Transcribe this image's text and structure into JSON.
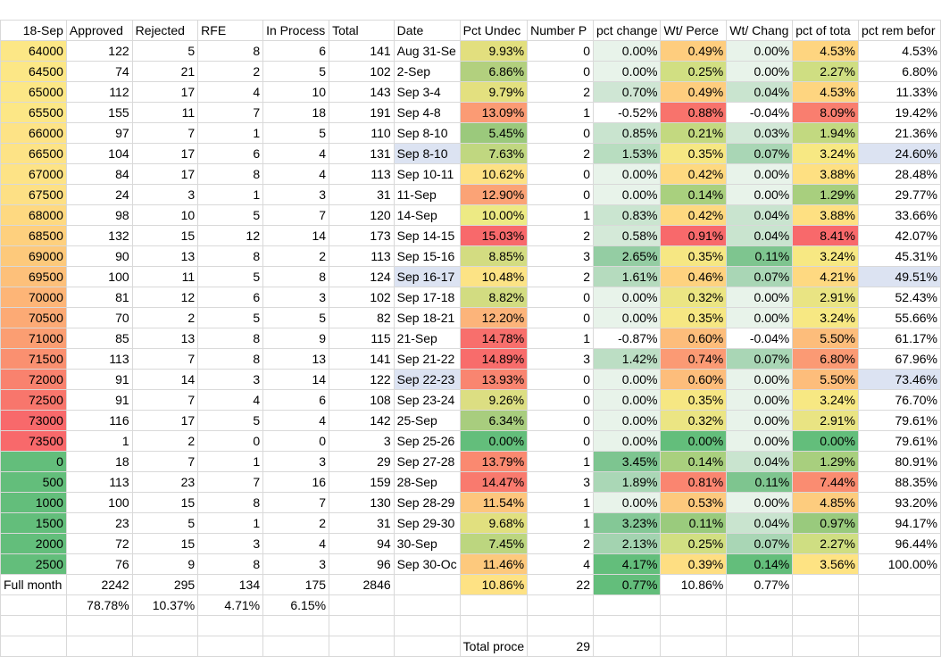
{
  "headers": [
    "18-Sep",
    "Approved",
    "Rejected",
    "RFE",
    "In Process",
    "Total",
    "Date",
    "Pct Undec",
    "Number P",
    "pct change",
    "Wt/ Perce",
    "Wt/ Chang",
    "pct of tota",
    "pct rem befor"
  ],
  "rows": [
    {
      "band": "64000",
      "approved": "122",
      "rejected": "5",
      "rfe": "8",
      "inproc": "6",
      "total": "141",
      "date": "Aug 31-Se",
      "pct": "9.93%",
      "num": "0",
      "chg": "0.00%",
      "wtp": "0.49%",
      "wtc": "0.00%",
      "tot": "4.53%",
      "rem": "4.53%",
      "c_band": "#fce786",
      "c_pct": "#e2df7e",
      "c_chg": "#e8f3ea",
      "c_wtp": "#fecd7e",
      "c_wtc": "#e8f3ea",
      "c_tot": "#fed580",
      "c_rem": "#ffffff"
    },
    {
      "band": "64500",
      "approved": "74",
      "rejected": "21",
      "rfe": "2",
      "inproc": "5",
      "total": "102",
      "date": "2-Sep",
      "pct": "6.86%",
      "num": "0",
      "chg": "0.00%",
      "wtp": "0.25%",
      "wtc": "0.00%",
      "tot": "2.27%",
      "rem": "6.80%",
      "c_band": "#fce786",
      "c_pct": "#b2d07e",
      "c_chg": "#e8f3ea",
      "c_wtp": "#d1df82",
      "c_wtc": "#e8f3ea",
      "c_tot": "#cfde82",
      "c_rem": "#ffffff"
    },
    {
      "band": "65000",
      "approved": "112",
      "rejected": "17",
      "rfe": "4",
      "inproc": "10",
      "total": "143",
      "date": "Sep 3-4",
      "pct": "9.79%",
      "num": "2",
      "chg": "0.70%",
      "wtp": "0.49%",
      "wtc": "0.04%",
      "tot": "4.53%",
      "rem": "11.33%",
      "c_band": "#fce786",
      "c_pct": "#e3e07f",
      "c_chg": "#cfe6d4",
      "c_wtp": "#fecd7e",
      "c_wtc": "#c9e4cf",
      "c_tot": "#fed580",
      "c_rem": "#ffffff"
    },
    {
      "band": "65500",
      "approved": "155",
      "rejected": "11",
      "rfe": "7",
      "inproc": "18",
      "total": "191",
      "date": "Sep 4-8",
      "pct": "13.09%",
      "num": "1",
      "chg": "-0.52%",
      "wtp": "0.88%",
      "wtc": "-0.04%",
      "tot": "8.09%",
      "rem": "19.42%",
      "c_band": "#fce786",
      "c_pct": "#fb9b74",
      "c_chg": "#ffffff",
      "c_wtp": "#f8736c",
      "c_wtc": "#ffffff",
      "c_tot": "#f97e6f",
      "c_rem": "#ffffff"
    },
    {
      "band": "66000",
      "approved": "97",
      "rejected": "7",
      "rfe": "1",
      "inproc": "5",
      "total": "110",
      "date": "Sep 8-10",
      "pct": "5.45%",
      "num": "0",
      "chg": "0.85%",
      "wtp": "0.21%",
      "wtc": "0.03%",
      "tot": "1.94%",
      "rem": "21.36%",
      "c_band": "#fde386",
      "c_pct": "#9bc97c",
      "c_chg": "#c9e4cf",
      "c_wtp": "#c3d980",
      "c_wtc": "#d2e8d7",
      "c_tot": "#c2d980",
      "c_rem": "#ffffff"
    },
    {
      "band": "66500",
      "approved": "104",
      "rejected": "17",
      "rfe": "6",
      "inproc": "4",
      "total": "131",
      "date": "Sep 8-10",
      "pct": "7.63%",
      "num": "2",
      "chg": "1.53%",
      "wtp": "0.35%",
      "wtc": "0.07%",
      "tot": "3.24%",
      "rem": "24.60%",
      "c_band": "#fde386",
      "c_pct": "#c0d780",
      "c_chg": "#b8ddc0",
      "c_wtp": "#f6e783",
      "c_wtc": "#a9d6b5",
      "c_tot": "#f7e883",
      "c_rem": "#dce3f2",
      "c_date": "#dce3f2"
    },
    {
      "band": "67000",
      "approved": "84",
      "rejected": "17",
      "rfe": "8",
      "inproc": "4",
      "total": "113",
      "date": "Sep 10-11",
      "pct": "10.62%",
      "num": "0",
      "chg": "0.00%",
      "wtp": "0.42%",
      "wtc": "0.00%",
      "tot": "3.88%",
      "rem": "28.48%",
      "c_band": "#fde386",
      "c_pct": "#fde184",
      "c_chg": "#e8f3ea",
      "c_wtp": "#fed980",
      "c_wtc": "#e8f3ea",
      "c_tot": "#fee082",
      "c_rem": "#ffffff"
    },
    {
      "band": "67500",
      "approved": "24",
      "rejected": "3",
      "rfe": "1",
      "inproc": "3",
      "total": "31",
      "date": "11-Sep",
      "pct": "12.90%",
      "num": "0",
      "chg": "0.00%",
      "wtp": "0.14%",
      "wtc": "0.00%",
      "tot": "1.29%",
      "rem": "29.77%",
      "c_band": "#fde085",
      "c_pct": "#fba376",
      "c_chg": "#e8f3ea",
      "c_wtp": "#a9d07e",
      "c_wtc": "#e8f3ea",
      "c_tot": "#a8cf7e",
      "c_rem": "#ffffff"
    },
    {
      "band": "68000",
      "approved": "98",
      "rejected": "10",
      "rfe": "5",
      "inproc": "7",
      "total": "120",
      "date": "14-Sep",
      "pct": "10.00%",
      "num": "1",
      "chg": "0.83%",
      "wtp": "0.42%",
      "wtc": "0.04%",
      "tot": "3.88%",
      "rem": "33.66%",
      "c_band": "#fed981",
      "c_pct": "#edea84",
      "c_chg": "#cae5d0",
      "c_wtp": "#fed980",
      "c_wtc": "#c9e4cf",
      "c_tot": "#fee082",
      "c_rem": "#ffffff"
    },
    {
      "band": "68500",
      "approved": "132",
      "rejected": "15",
      "rfe": "12",
      "inproc": "14",
      "total": "173",
      "date": "Sep 14-15",
      "pct": "15.03%",
      "num": "2",
      "chg": "0.58%",
      "wtp": "0.91%",
      "wtc": "0.04%",
      "tot": "8.41%",
      "rem": "42.07%",
      "c_band": "#fed07e",
      "c_pct": "#f8696b",
      "c_chg": "#d4e9d8",
      "c_wtp": "#f8696b",
      "c_wtc": "#c9e4cf",
      "c_tot": "#f8696b",
      "c_rem": "#ffffff"
    },
    {
      "band": "69000",
      "approved": "90",
      "rejected": "13",
      "rfe": "8",
      "inproc": "2",
      "total": "113",
      "date": "Sep 15-16",
      "pct": "8.85%",
      "num": "3",
      "chg": "2.65%",
      "wtp": "0.35%",
      "wtc": "0.11%",
      "tot": "3.24%",
      "rem": "45.31%",
      "c_band": "#fdc97b",
      "c_pct": "#d3dc81",
      "c_chg": "#94cda3",
      "c_wtp": "#f6e783",
      "c_wtc": "#7ec58f",
      "c_tot": "#f7e883",
      "c_rem": "#ffffff"
    },
    {
      "band": "69500",
      "approved": "100",
      "rejected": "11",
      "rfe": "5",
      "inproc": "8",
      "total": "124",
      "date": "Sep 16-17",
      "pct": "10.48%",
      "num": "2",
      "chg": "1.61%",
      "wtp": "0.46%",
      "wtc": "0.07%",
      "tot": "4.21%",
      "rem": "49.51%",
      "c_band": "#fdc07a",
      "c_pct": "#fce385",
      "c_chg": "#b5dbbe",
      "c_wtp": "#fed27f",
      "c_wtc": "#a9d6b5",
      "c_tot": "#fed981",
      "c_rem": "#dce3f2",
      "c_date": "#dce3f2"
    },
    {
      "band": "70000",
      "approved": "81",
      "rejected": "12",
      "rfe": "6",
      "inproc": "3",
      "total": "102",
      "date": "Sep 17-18",
      "pct": "8.82%",
      "num": "0",
      "chg": "0.00%",
      "wtp": "0.32%",
      "wtc": "0.00%",
      "tot": "2.91%",
      "rem": "52.43%",
      "c_band": "#fdb577",
      "c_pct": "#d2dc81",
      "c_chg": "#e8f3ea",
      "c_wtp": "#ebe583",
      "c_wtc": "#e8f3ea",
      "c_tot": "#e9e483",
      "c_rem": "#ffffff"
    },
    {
      "band": "70500",
      "approved": "70",
      "rejected": "2",
      "rfe": "5",
      "inproc": "5",
      "total": "82",
      "date": "Sep 18-21",
      "pct": "12.20%",
      "num": "0",
      "chg": "0.00%",
      "wtp": "0.35%",
      "wtc": "0.00%",
      "tot": "3.24%",
      "rem": "55.66%",
      "c_band": "#fcaa75",
      "c_pct": "#fcb47a",
      "c_chg": "#e8f3ea",
      "c_wtp": "#f6e783",
      "c_wtc": "#e8f3ea",
      "c_tot": "#f7e883",
      "c_rem": "#ffffff"
    },
    {
      "band": "71000",
      "approved": "85",
      "rejected": "13",
      "rfe": "8",
      "inproc": "9",
      "total": "115",
      "date": "21-Sep",
      "pct": "14.78%",
      "num": "1",
      "chg": "-0.87%",
      "wtp": "0.60%",
      "wtc": "-0.04%",
      "tot": "5.50%",
      "rem": "61.17%",
      "c_band": "#fb9e72",
      "c_pct": "#f86f6c",
      "c_chg": "#ffffff",
      "c_wtp": "#fdbd7b",
      "c_wtc": "#ffffff",
      "c_tot": "#fdbd7b",
      "c_rem": "#ffffff"
    },
    {
      "band": "71500",
      "approved": "113",
      "rejected": "7",
      "rfe": "8",
      "inproc": "13",
      "total": "141",
      "date": "Sep 21-22",
      "pct": "14.89%",
      "num": "3",
      "chg": "1.42%",
      "wtp": "0.74%",
      "wtc": "0.07%",
      "tot": "6.80%",
      "rem": "67.96%",
      "c_band": "#fa9070",
      "c_pct": "#f86c6b",
      "c_chg": "#bcdec4",
      "c_wtp": "#fb9a74",
      "c_wtc": "#a9d6b5",
      "c_tot": "#fb9a74",
      "c_rem": "#ffffff"
    },
    {
      "band": "72000",
      "approved": "91",
      "rejected": "14",
      "rfe": "3",
      "inproc": "14",
      "total": "122",
      "date": "Sep 22-23",
      "pct": "13.93%",
      "num": "0",
      "chg": "0.00%",
      "wtp": "0.60%",
      "wtc": "0.00%",
      "tot": "5.50%",
      "rem": "73.46%",
      "c_band": "#f9826e",
      "c_pct": "#f98570",
      "c_chg": "#e8f3ea",
      "c_wtp": "#fdbd7b",
      "c_wtc": "#e8f3ea",
      "c_tot": "#fdbd7b",
      "c_rem": "#dce3f2",
      "c_date": "#dce3f2"
    },
    {
      "band": "72500",
      "approved": "91",
      "rejected": "7",
      "rfe": "4",
      "inproc": "6",
      "total": "108",
      "date": "Sep 23-24",
      "pct": "9.26%",
      "num": "0",
      "chg": "0.00%",
      "wtp": "0.35%",
      "wtc": "0.00%",
      "tot": "3.24%",
      "rem": "76.70%",
      "c_band": "#f8766c",
      "c_pct": "#dcde82",
      "c_chg": "#e8f3ea",
      "c_wtp": "#f6e783",
      "c_wtc": "#e8f3ea",
      "c_tot": "#f7e883",
      "c_rem": "#ffffff"
    },
    {
      "band": "73000",
      "approved": "116",
      "rejected": "17",
      "rfe": "5",
      "inproc": "4",
      "total": "142",
      "date": "25-Sep",
      "pct": "6.34%",
      "num": "0",
      "chg": "0.00%",
      "wtp": "0.32%",
      "wtc": "0.00%",
      "tot": "2.91%",
      "rem": "79.61%",
      "c_band": "#f8696b",
      "c_pct": "#a8cd7e",
      "c_chg": "#e8f3ea",
      "c_wtp": "#ebe583",
      "c_wtc": "#e8f3ea",
      "c_tot": "#e9e483",
      "c_rem": "#ffffff"
    },
    {
      "band": "73500",
      "approved": "1",
      "rejected": "2",
      "rfe": "0",
      "inproc": "0",
      "total": "3",
      "date": "Sep 25-26",
      "pct": "0.00%",
      "num": "0",
      "chg": "0.00%",
      "wtp": "0.00%",
      "wtc": "0.00%",
      "tot": "0.00%",
      "rem": "79.61%",
      "c_band": "#f8696b",
      "c_pct": "#63be7b",
      "c_chg": "#e8f3ea",
      "c_wtp": "#63be7b",
      "c_wtc": "#e8f3ea",
      "c_tot": "#63be7b",
      "c_rem": "#ffffff"
    },
    {
      "band": "0",
      "approved": "18",
      "rejected": "7",
      "rfe": "1",
      "inproc": "3",
      "total": "29",
      "date": "Sep 27-28",
      "pct": "13.79%",
      "num": "1",
      "chg": "3.45%",
      "wtp": "0.14%",
      "wtc": "0.04%",
      "tot": "1.29%",
      "rem": "80.91%",
      "c_band": "#63be7b",
      "c_pct": "#fa8970",
      "c_chg": "#7dc590",
      "c_wtp": "#a9d07e",
      "c_wtc": "#c9e4cf",
      "c_tot": "#a8cf7e",
      "c_rem": "#ffffff"
    },
    {
      "band": "500",
      "approved": "113",
      "rejected": "23",
      "rfe": "7",
      "inproc": "16",
      "total": "159",
      "date": "28-Sep",
      "pct": "14.47%",
      "num": "3",
      "chg": "1.89%",
      "wtp": "0.81%",
      "wtc": "0.11%",
      "tot": "7.44%",
      "rem": "88.35%",
      "c_band": "#63be7b",
      "c_pct": "#f97a6e",
      "c_chg": "#aad7b6",
      "c_wtp": "#fa8570",
      "c_wtc": "#7ec58f",
      "c_tot": "#fa8c71",
      "c_rem": "#ffffff"
    },
    {
      "band": "1000",
      "approved": "100",
      "rejected": "15",
      "rfe": "8",
      "inproc": "7",
      "total": "130",
      "date": "Sep 28-29",
      "pct": "11.54%",
      "num": "1",
      "chg": "0.00%",
      "wtp": "0.53%",
      "wtc": "0.00%",
      "tot": "4.85%",
      "rem": "93.20%",
      "c_band": "#63be7b",
      "c_pct": "#fdc67d",
      "c_chg": "#e8f3ea",
      "c_wtp": "#fdc97d",
      "c_wtc": "#e8f3ea",
      "c_tot": "#fdcc7e",
      "c_rem": "#ffffff"
    },
    {
      "band": "1500",
      "approved": "23",
      "rejected": "5",
      "rfe": "1",
      "inproc": "2",
      "total": "31",
      "date": "Sep 29-30",
      "pct": "9.68%",
      "num": "1",
      "chg": "3.23%",
      "wtp": "0.11%",
      "wtc": "0.04%",
      "tot": "0.97%",
      "rem": "94.17%",
      "c_band": "#63be7b",
      "c_pct": "#e1e07f",
      "c_chg": "#84c896",
      "c_wtp": "#9acb7d",
      "c_wtc": "#c9e4cf",
      "c_tot": "#99ca7d",
      "c_rem": "#ffffff"
    },
    {
      "band": "2000",
      "approved": "72",
      "rejected": "15",
      "rfe": "3",
      "inproc": "4",
      "total": "94",
      "date": "30-Sep",
      "pct": "7.45%",
      "num": "2",
      "chg": "2.13%",
      "wtp": "0.25%",
      "wtc": "0.07%",
      "tot": "2.27%",
      "rem": "96.44%",
      "c_band": "#63be7b",
      "c_pct": "#bcd67f",
      "c_chg": "#a3d3b0",
      "c_wtp": "#d1df82",
      "c_wtc": "#a9d6b5",
      "c_tot": "#cfde82",
      "c_rem": "#ffffff"
    },
    {
      "band": "2500",
      "approved": "76",
      "rejected": "9",
      "rfe": "8",
      "inproc": "3",
      "total": "96",
      "date": "Sep 30-Oc",
      "pct": "11.46%",
      "num": "4",
      "chg": "4.17%",
      "wtp": "0.39%",
      "wtc": "0.14%",
      "tot": "3.56%",
      "rem": "100.00%",
      "c_band": "#63be7b",
      "c_pct": "#fdc97d",
      "c_chg": "#63be7b",
      "c_wtp": "#fede82",
      "c_wtc": "#63be7b",
      "c_tot": "#fee383",
      "c_rem": "#ffffff"
    }
  ],
  "full_month": {
    "label": "Full month",
    "approved": "2242",
    "rejected": "295",
    "rfe": "134",
    "inproc": "175",
    "total": "2846",
    "pct": "10.86%",
    "num": "22",
    "chg": "0.77%",
    "wtp": "10.86%",
    "wtc": "0.77%",
    "c_pct": "#fee284",
    "c_chg": "#63be7b"
  },
  "percent_row": {
    "approved": "78.78%",
    "rejected": "10.37%",
    "rfe": "4.71%",
    "inproc": "6.15%"
  },
  "total_processed": {
    "label": "Total proce",
    "value": "29"
  }
}
